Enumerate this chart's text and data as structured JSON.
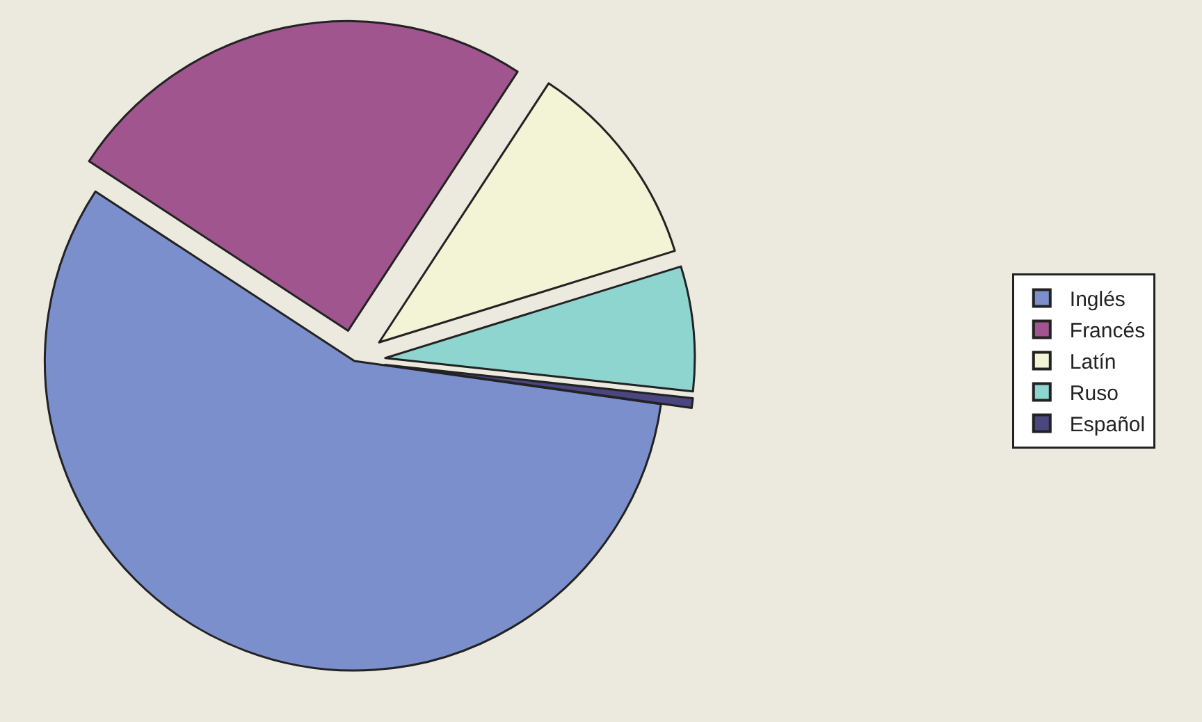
{
  "chart_data": {
    "type": "pie",
    "categories": [
      "Inglés",
      "Francés",
      "Latín",
      "Ruso",
      "Español"
    ],
    "values": [
      57,
      25,
      11,
      6.5,
      0.5
    ],
    "colors": [
      "#7b8fcc",
      "#a0558f",
      "#f3f3d6",
      "#8ed4cf",
      "#4a4680"
    ],
    "legend": "right"
  }
}
